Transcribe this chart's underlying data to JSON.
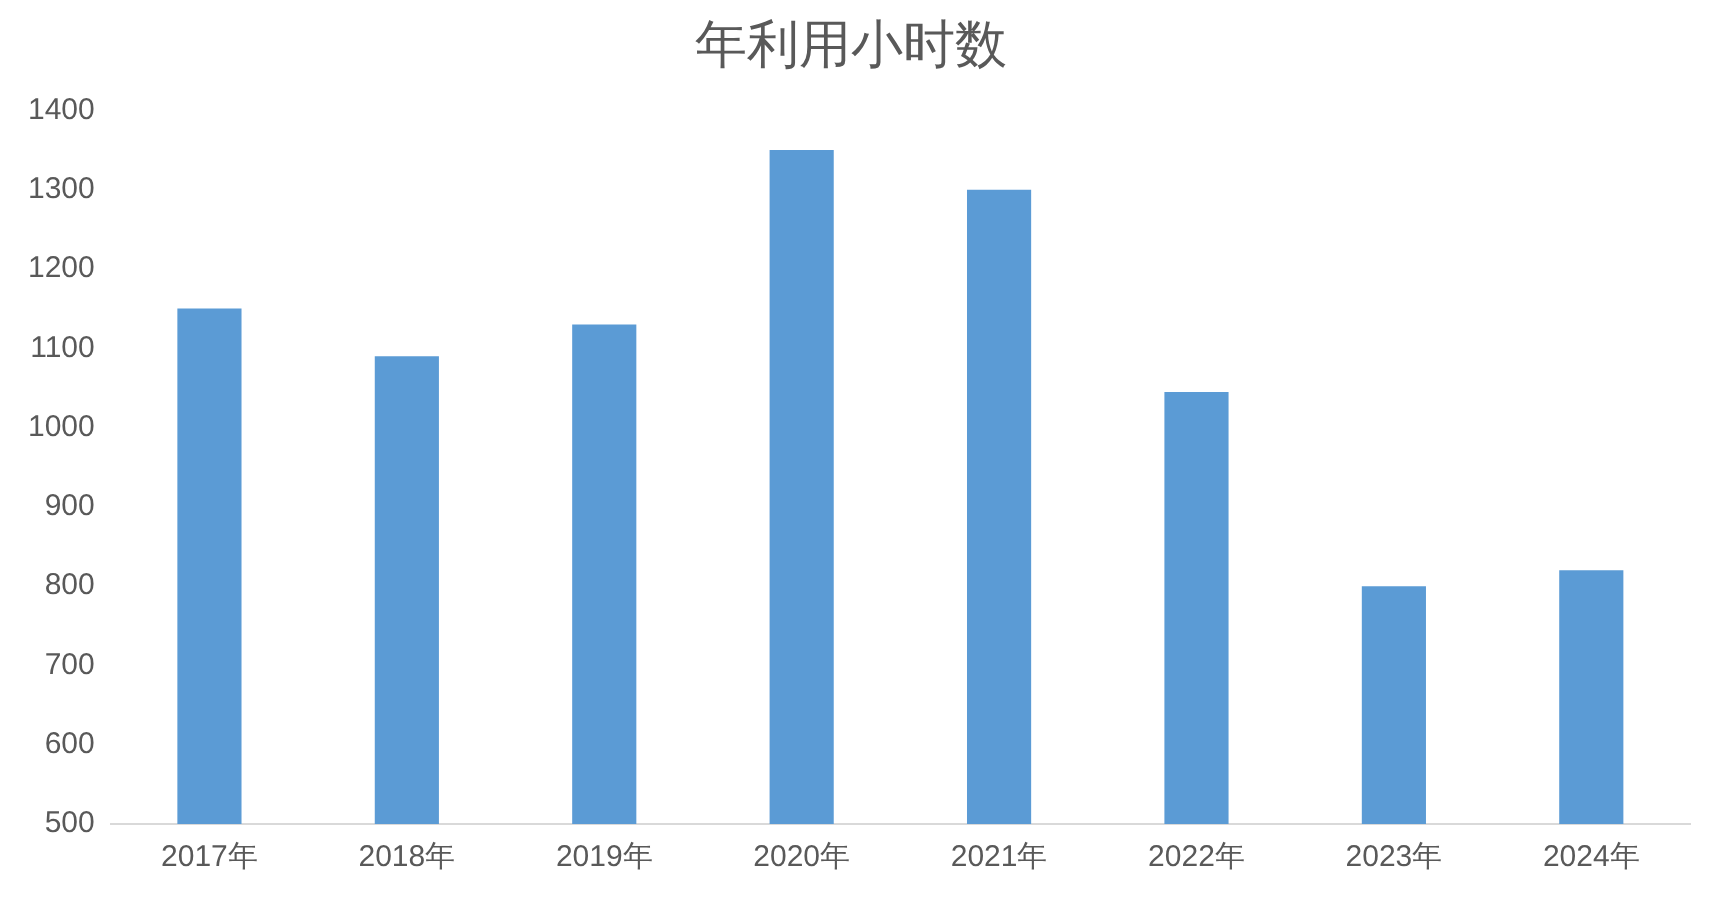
{
  "chart_data": {
    "type": "bar",
    "title": "年利用小时数",
    "categories": [
      "2017年",
      "2018年",
      "2019年",
      "2020年",
      "2021年",
      "2022年",
      "2023年",
      "2024年"
    ],
    "values": [
      1150,
      1090,
      1130,
      1350,
      1300,
      1045,
      800,
      820
    ],
    "color": "#5b9bd5",
    "ylim": [
      500,
      1400
    ],
    "yticks": [
      500,
      600,
      700,
      800,
      900,
      1000,
      1100,
      1200,
      1300,
      1400
    ],
    "grid": false,
    "legend": false
  }
}
